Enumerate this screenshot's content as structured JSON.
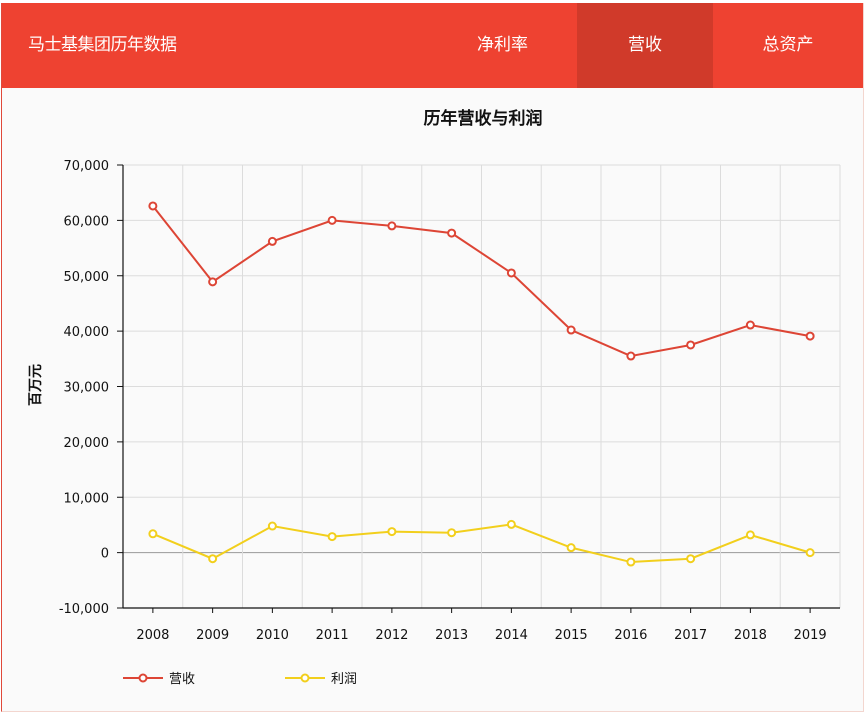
{
  "header": {
    "brand": "马士基集团历年数据",
    "nav": [
      {
        "label": "净利率",
        "active": false
      },
      {
        "label": "营收",
        "active": true
      },
      {
        "label": "总资产",
        "active": false
      }
    ]
  },
  "colors": {
    "header_bg": "#ee4231",
    "nav_active_bg": "#d03a2a",
    "revenue": "#dd4535",
    "profit": "#f2cf1c"
  },
  "chart_data": {
    "type": "line",
    "title": "历年营收与利润",
    "xlabel": "",
    "ylabel": "百万元",
    "categories": [
      "2008",
      "2009",
      "2010",
      "2011",
      "2012",
      "2013",
      "2014",
      "2015",
      "2016",
      "2017",
      "2018",
      "2019"
    ],
    "series": [
      {
        "name": "营收",
        "color": "#dd4535",
        "values": [
          62600,
          48900,
          56200,
          60000,
          59000,
          57700,
          50500,
          40200,
          35500,
          37500,
          41100,
          39100
        ]
      },
      {
        "name": "利润",
        "color": "#f2cf1c",
        "values": [
          3400,
          -1100,
          4800,
          2900,
          3800,
          3600,
          5100,
          900,
          -1700,
          -1100,
          3200,
          0
        ]
      }
    ],
    "ylim": [
      -10000,
      70000
    ],
    "yticks": [
      -10000,
      0,
      10000,
      20000,
      30000,
      40000,
      50000,
      60000,
      70000
    ],
    "ytick_labels": [
      "-10,000",
      "0",
      "10,000",
      "20,000",
      "30,000",
      "40,000",
      "50,000",
      "60,000",
      "70,000"
    ],
    "grid": true,
    "legend_position": "bottom-left"
  }
}
